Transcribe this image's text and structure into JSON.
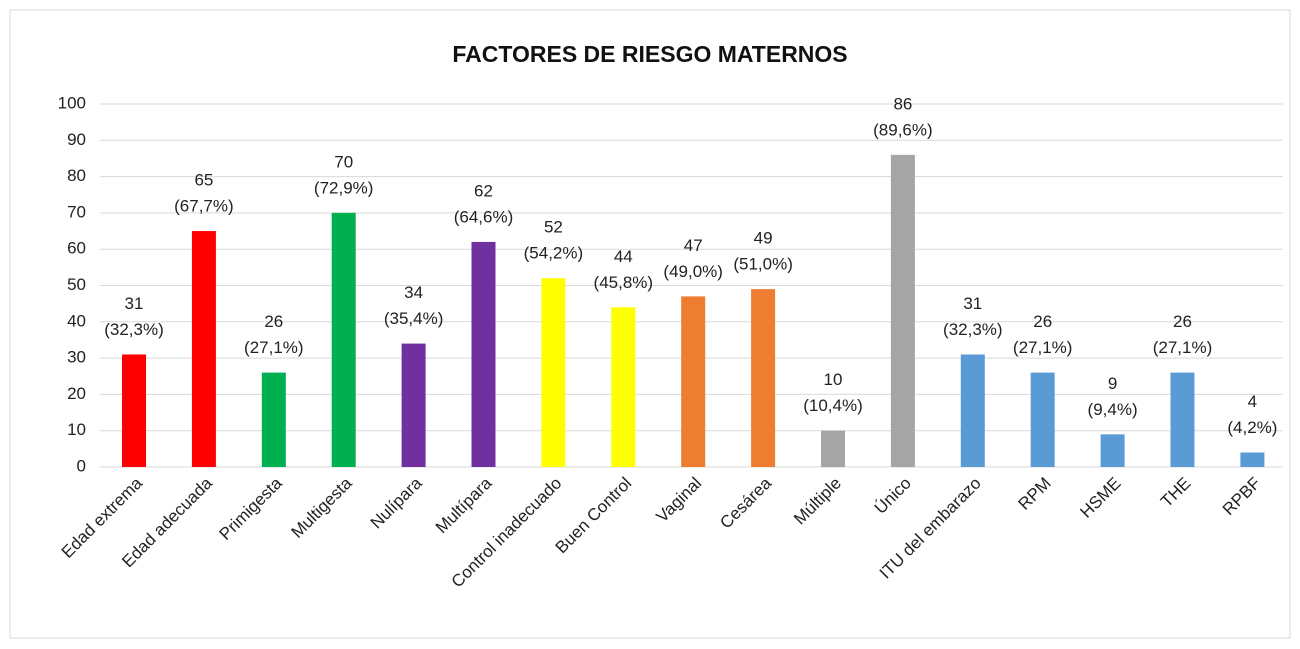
{
  "chart_data": {
    "type": "bar",
    "title": "FACTORES DE RIESGO MATERNOS",
    "categories": [
      "Edad extrema",
      "Edad adecuada",
      "Primigesta",
      "Multigesta",
      "Nulípara",
      "Multípara",
      "Control inadecuado",
      "Buen Control",
      "Vaginal",
      "Cesárea",
      "Múltiple",
      "Único",
      "ITU del embarazo",
      "RPM",
      "HSME",
      "THE",
      "RPBF"
    ],
    "values": [
      31,
      65,
      26,
      70,
      34,
      62,
      52,
      44,
      47,
      49,
      10,
      86,
      31,
      26,
      9,
      26,
      4
    ],
    "percent_labels": [
      "(32,3%)",
      "(67,7%)",
      "(27,1%)",
      "(72,9%)",
      "(35,4%)",
      "(64,6%)",
      "(54,2%)",
      "(45,8%)",
      "(49,0%)",
      "(51,0%)",
      "(10,4%)",
      "(89,6%)",
      "(32,3%)",
      "(27,1%)",
      "(9,4%)",
      "(27,1%)",
      "(4,2%)"
    ],
    "colors": [
      "#ff0000",
      "#ff0000",
      "#00b050",
      "#00b050",
      "#7030a0",
      "#7030a0",
      "#ffff00",
      "#ffff00",
      "#ed7d31",
      "#ed7d31",
      "#a5a5a5",
      "#a5a5a5",
      "#5b9bd5",
      "#5b9bd5",
      "#5b9bd5",
      "#5b9bd5",
      "#5b9bd5"
    ],
    "ylim": [
      0,
      100
    ],
    "yticks": [
      0,
      10,
      20,
      30,
      40,
      50,
      60,
      70,
      80,
      90,
      100
    ],
    "grid": true
  }
}
